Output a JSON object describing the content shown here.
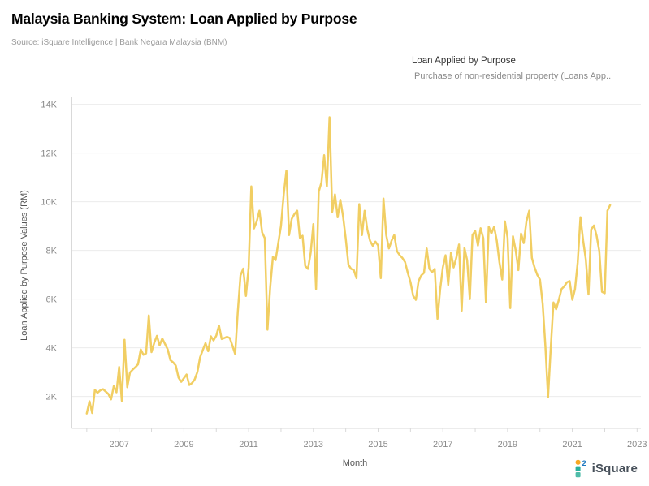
{
  "header": {
    "title": "Malaysia Banking System: Loan Applied by Purpose",
    "source": "Source: iSquare Intelligence | Bank Negara Malaysia (BNM)"
  },
  "legend": {
    "title": "Loan Applied by Purpose",
    "items": [
      {
        "label": "Purchase of non-residential property (Loans App..",
        "color": "#F1CE63"
      }
    ]
  },
  "branding": {
    "text": "iSquare"
  },
  "chart_data": {
    "type": "line",
    "title": "Malaysia Banking System: Loan Applied by Purpose",
    "x_axis": {
      "label": "Month",
      "tick_years": [
        2006,
        2007,
        2008,
        2009,
        2010,
        2011,
        2012,
        2013,
        2014,
        2015,
        2016,
        2017,
        2018,
        2019,
        2020,
        2021,
        2022,
        2023
      ],
      "labeled_years": [
        "2007",
        "2009",
        "2011",
        "2013",
        "2015",
        "2017",
        "2019",
        "2021",
        "2023"
      ],
      "range_years": [
        2005.5,
        2023.1
      ]
    },
    "y_axis": {
      "label": "Loan Applied by Purpose Values (RM)",
      "tick_values": [
        2000,
        4000,
        6000,
        8000,
        10000,
        12000,
        14000
      ],
      "tick_labels": [
        "2K",
        "4K",
        "6K",
        "8K",
        "10K",
        "12K",
        "14K"
      ],
      "range": [
        700,
        14300
      ]
    },
    "grid": "horizontal",
    "legend_position": "top-right",
    "series": [
      {
        "name": "Purchase of non-residential property (Loans Applied)",
        "color": "#F1CE63",
        "start": "2006-01",
        "frequency": "monthly",
        "values": [
          1300,
          1800,
          1320,
          2270,
          2150,
          2250,
          2300,
          2200,
          2100,
          1880,
          2430,
          2170,
          3210,
          1820,
          4330,
          2380,
          2980,
          3100,
          3200,
          3320,
          3930,
          3710,
          3770,
          5330,
          3820,
          4200,
          4490,
          4100,
          4380,
          4150,
          3930,
          3490,
          3400,
          3270,
          2770,
          2600,
          2750,
          2900,
          2470,
          2550,
          2700,
          3000,
          3600,
          3900,
          4190,
          3860,
          4470,
          4300,
          4500,
          4910,
          4360,
          4400,
          4450,
          4400,
          4080,
          3740,
          5500,
          6970,
          7250,
          6130,
          7300,
          10630,
          8900,
          9190,
          9630,
          8740,
          8500,
          4740,
          6500,
          7740,
          7600,
          8300,
          9000,
          10300,
          11280,
          8630,
          9300,
          9500,
          9630,
          8520,
          8600,
          7360,
          7240,
          7900,
          9080,
          6410,
          10410,
          10800,
          11910,
          10630,
          13470,
          9580,
          10300,
          9360,
          10080,
          9410,
          8500,
          7410,
          7240,
          7190,
          6860,
          9900,
          8630,
          9630,
          8860,
          8400,
          8190,
          8360,
          8200,
          6860,
          10130,
          8630,
          8080,
          8400,
          8630,
          7970,
          7800,
          7690,
          7520,
          7080,
          6690,
          6130,
          5970,
          6740,
          6970,
          7080,
          8080,
          7240,
          7100,
          7240,
          5190,
          6400,
          7300,
          7800,
          6580,
          7910,
          7300,
          7700,
          8240,
          5520,
          8100,
          7600,
          6000,
          8630,
          8800,
          8200,
          8910,
          8500,
          5860,
          8970,
          8700,
          8970,
          8400,
          7500,
          6800,
          9190,
          8520,
          5630,
          8580,
          8000,
          7190,
          8690,
          8300,
          9190,
          9630,
          7690,
          7300,
          7000,
          6800,
          5800,
          4080,
          1970,
          3970,
          5860,
          5580,
          5970,
          6410,
          6520,
          6690,
          6740,
          5970,
          6410,
          7500,
          9360,
          8410,
          7630,
          6190,
          8860,
          9020,
          8600,
          7970,
          6300,
          6240,
          9630,
          9860
        ]
      }
    ]
  }
}
